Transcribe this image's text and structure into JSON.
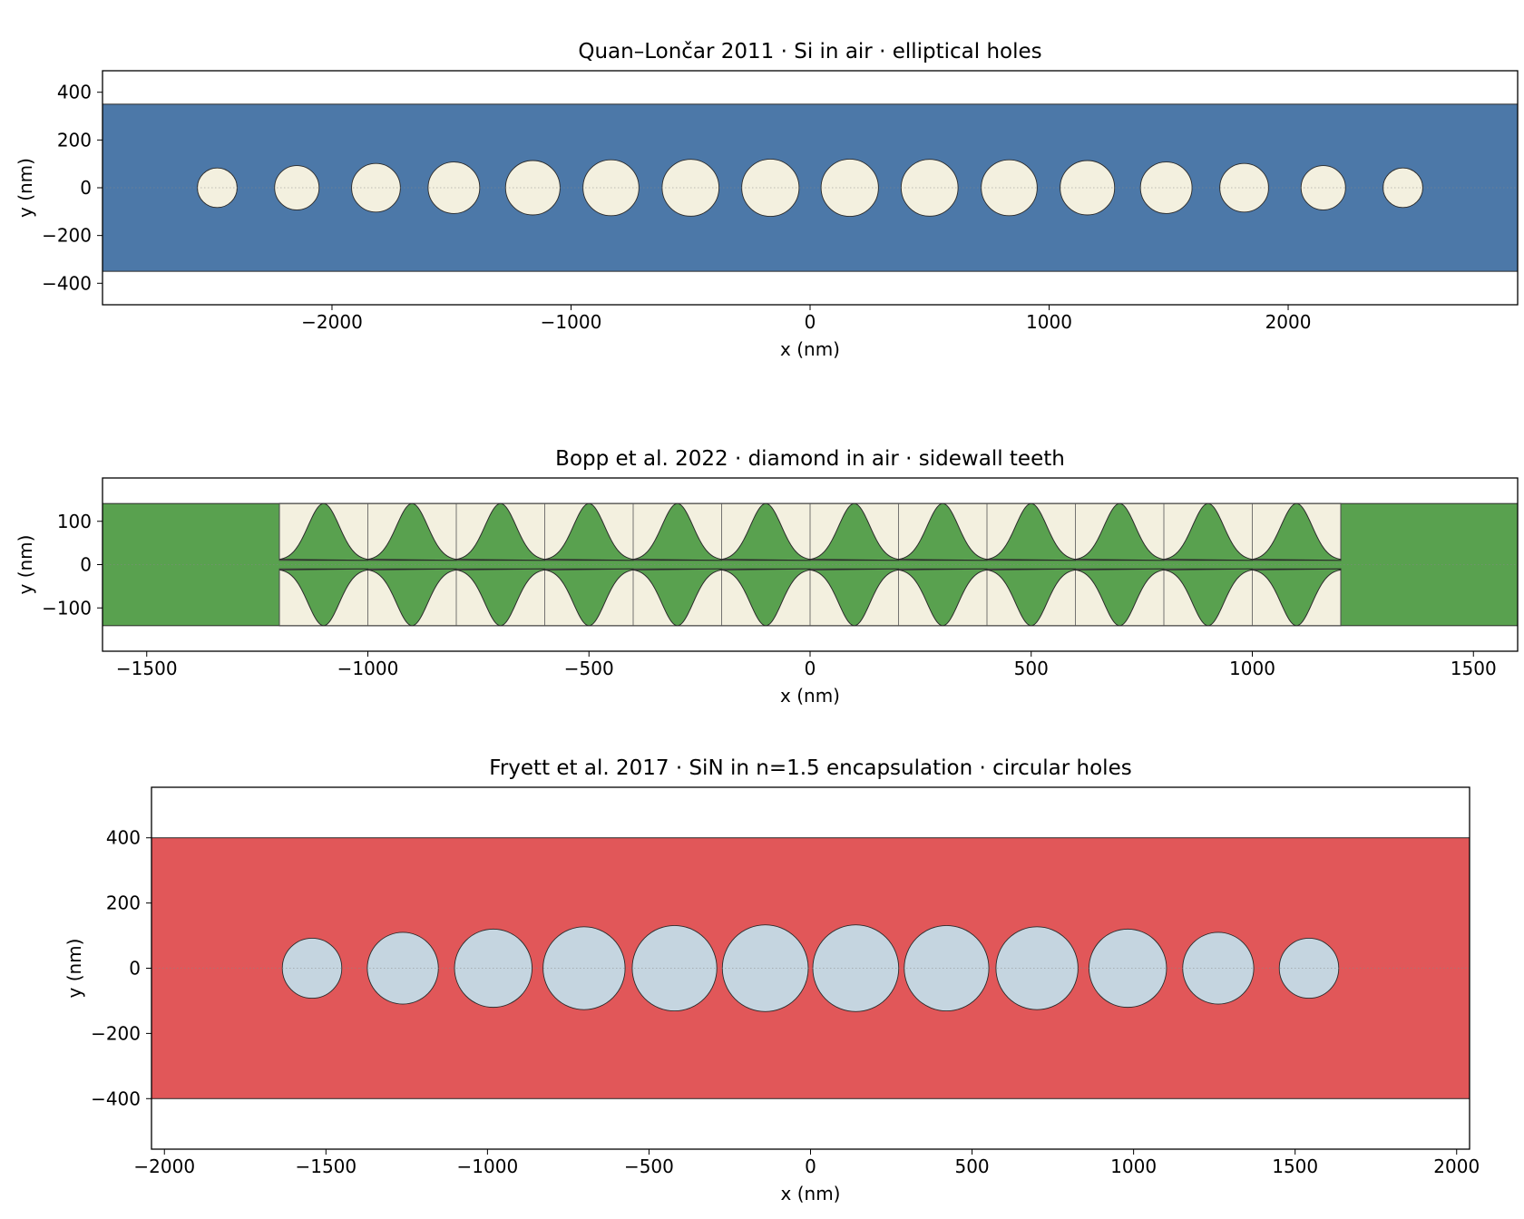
{
  "colors": {
    "blue_slab": "#4c78a8",
    "green_slab": "#59a14f",
    "red_slab": "#e15759",
    "hole_cream": "#f3f0df",
    "hole_blue": "#c5d5e0",
    "outline": "#2b2b2b"
  },
  "chart_data": [
    {
      "type": "diagram",
      "title": "Quan–Lončar 2011  ·  Si in air  ·  elliptical holes",
      "xlabel": "x (nm)",
      "ylabel": "y (nm)",
      "xlim": [
        -2960,
        2960
      ],
      "ylim": [
        -490,
        490
      ],
      "xticks": [
        -2000,
        -1000,
        0,
        1000,
        2000
      ],
      "yticks": [
        -400,
        -200,
        0,
        200,
        400
      ],
      "slab": {
        "y_min": -350,
        "y_max": 350,
        "color": "blue_slab"
      },
      "holes": {
        "shape": "ellipse",
        "color": "hole_cream",
        "x": [
          -2480,
          -2147,
          -1816,
          -1490,
          -1160,
          -833,
          -500,
          -166,
          166,
          500,
          833,
          1160,
          1490,
          1816,
          2147,
          2480
        ],
        "rx": [
          83,
          93,
          102,
          108,
          114,
          117,
          119,
          120,
          120,
          119,
          117,
          114,
          108,
          102,
          93,
          83
        ],
        "ry": [
          83,
          93,
          102,
          108,
          114,
          117,
          119,
          120,
          120,
          119,
          117,
          114,
          108,
          102,
          93,
          83
        ]
      }
    },
    {
      "type": "diagram",
      "title": "Bopp et al. 2022  ·  diamond in air  ·  sidewall teeth",
      "xlabel": "x (nm)",
      "ylabel": "y (nm)",
      "xlim": [
        -1600,
        1600
      ],
      "ylim": [
        -200,
        200
      ],
      "xticks": [
        -1500,
        -1000,
        -500,
        0,
        500,
        1000,
        1500
      ],
      "yticks": [
        -100,
        0,
        100
      ],
      "slab": {
        "y_min": -141,
        "y_max": 141,
        "color": "green_slab"
      },
      "teeth": {
        "color": "hole_cream",
        "cell_edges": [
          -1200,
          -1000,
          -800,
          -600,
          -400,
          -200,
          0,
          200,
          400,
          600,
          800,
          1000,
          1200
        ],
        "centers": [
          -1100,
          -900,
          -700,
          -500,
          -300,
          -100,
          100,
          300,
          500,
          700,
          900,
          1100
        ],
        "outer_y": 141,
        "inner_y": 10,
        "tooth_width": 200
      }
    },
    {
      "type": "diagram",
      "title": "Fryett et al. 2017  ·  SiN in n=1.5 encapsulation  ·  circular holes",
      "xlabel": "x (nm)",
      "ylabel": "y (nm)",
      "xlim": [
        -2040,
        2040
      ],
      "ylim": [
        -555,
        555
      ],
      "xticks": [
        -2000,
        -1500,
        -1000,
        -500,
        0,
        500,
        1000,
        1500,
        2000
      ],
      "yticks": [
        -400,
        -200,
        0,
        200,
        400
      ],
      "slab": {
        "y_min": -400,
        "y_max": 400,
        "color": "red_slab"
      },
      "holes": {
        "shape": "circle",
        "color": "hole_blue",
        "x": [
          -1543,
          -1262,
          -982,
          -701,
          -421,
          -140,
          140,
          421,
          701,
          982,
          1262,
          1543
        ],
        "rx": [
          92,
          110,
          120,
          127,
          131,
          133,
          133,
          131,
          127,
          120,
          110,
          92
        ],
        "ry": [
          92,
          110,
          120,
          127,
          131,
          133,
          133,
          131,
          127,
          120,
          110,
          92
        ]
      }
    }
  ]
}
